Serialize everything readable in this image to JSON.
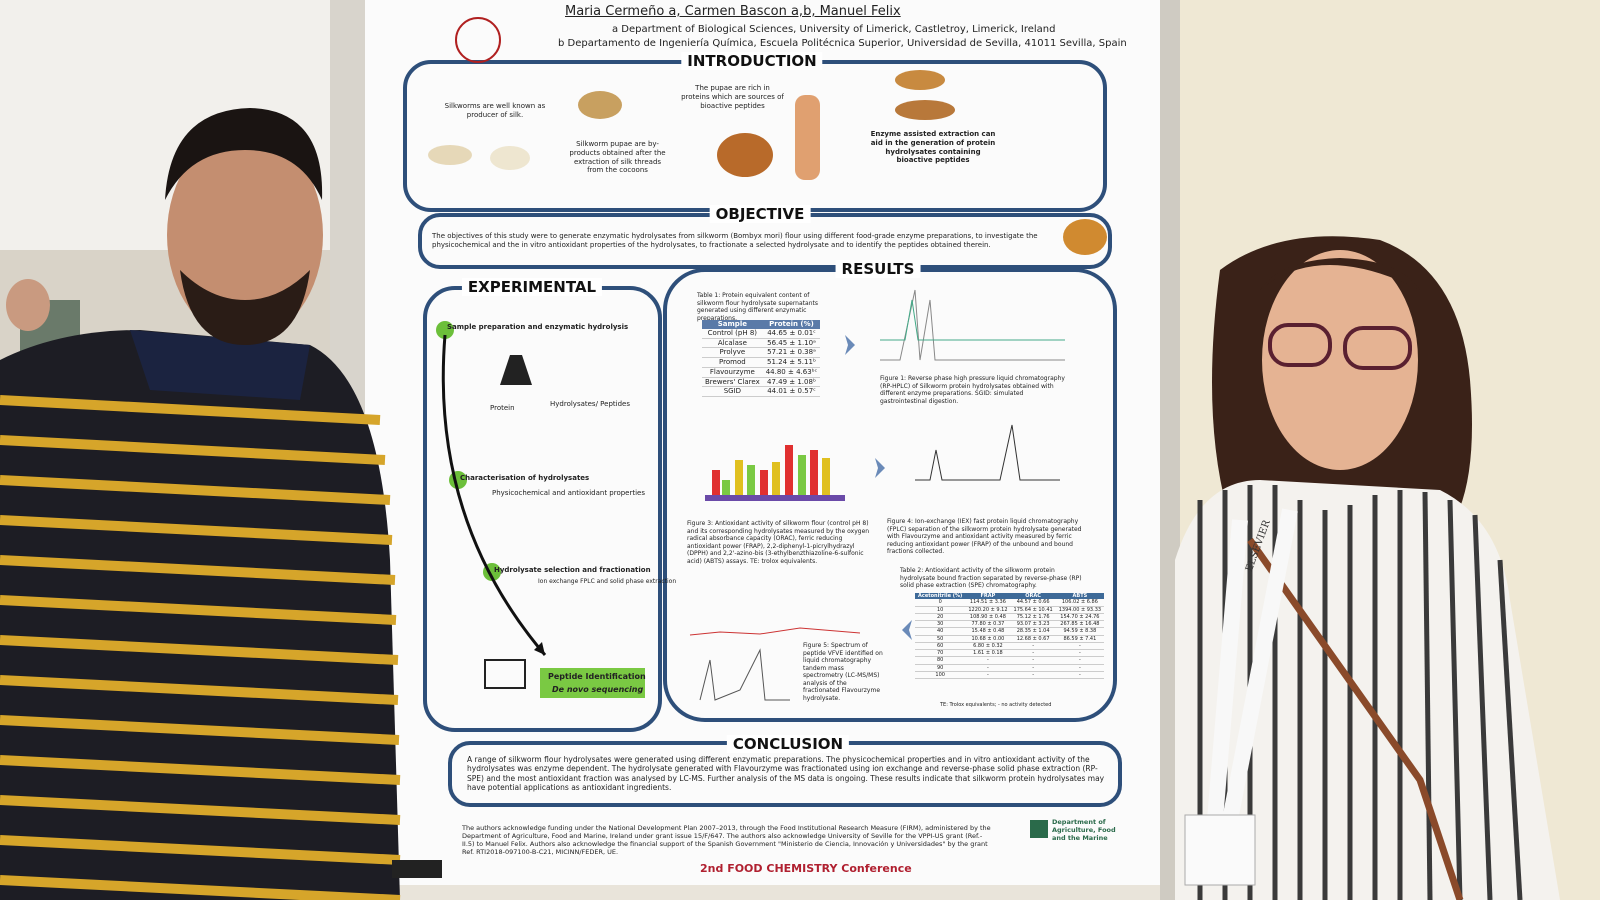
{
  "poster": {
    "authors": "Maria Cermeño a, Carmen Bascon a,b, Manuel Felix",
    "affiliations": [
      "a Department of Biological Sciences, University of Limerick, Castletroy, Limerick, Ireland",
      "b Departamento de Ingeniería Química, Escuela Politécnica Superior, Universidad de Sevilla, 41011 Sevilla, Spain"
    ],
    "introduction": {
      "title": "INTRODUCTION",
      "texts": [
        "Silkworms are well known as producer of silk.",
        "Silkworm pupae are by-products obtained after the extraction of silk threads from the cocoons",
        "The pupae are rich in proteins which are sources of bioactive peptides",
        "Enzyme assisted extraction can aid in the generation of protein hydrolysates containing bioactive peptides"
      ]
    },
    "objective": {
      "title": "OBJECTIVE",
      "text": "The objectives of this study were to generate enzymatic hydrolysates from silkworm (Bombyx mori) flour using different food-grade enzyme preparations, to investigate the physicochemical and the in vitro antioxidant properties of the hydrolysates, to fractionate a selected hydrolysate and to identify the peptides obtained therein."
    },
    "experimental": {
      "title": "EXPERIMENTAL",
      "steps": [
        "Sample preparation and enzymatic hydrolysis",
        "Characterisation of hydrolysates",
        "Hydrolysate selection and fractionation"
      ],
      "labels": [
        "Protein",
        "Hydrolysates/ Peptides",
        "Physicochemical and antioxidant properties",
        "Ion exchange FPLC and solid phase extraction"
      ],
      "final": [
        "Peptide Identification",
        "De novo sequencing"
      ]
    },
    "results": {
      "title": "RESULTS",
      "table1": {
        "caption": "Table 1: Protein equivalent content of silkworm flour hydrolysate supernatants generated using different enzymatic preparations.",
        "header": [
          "Sample",
          "Protein (%)"
        ],
        "rows": [
          [
            "Control (pH 8)",
            "44.65 ± 0.01ᶜ"
          ],
          [
            "Alcalase",
            "56.45 ± 1.10ᵃ"
          ],
          [
            "Prolyve",
            "57.21 ± 0.38ᵃ"
          ],
          [
            "Promod",
            "51.24 ± 5.11ᵇ"
          ],
          [
            "Flavourzyme",
            "44.80 ± 4.63ᵇᶜ"
          ],
          [
            "Brewers' Clarex",
            "47.49 ± 1.08ᵇ"
          ],
          [
            "SGID",
            "44.01 ± 0.57ᶜ"
          ]
        ]
      },
      "figure1": "Figure 1: Reverse phase high pressure liquid chromatography (RP-HPLC) of Silkworm protein hydrolysates obtained with different enzyme preparations. SGID: simulated gastrointestinal digestion.",
      "figure3": "Figure 3: Antioxidant activity of silkworm flour (control pH 8) and its corresponding hydrolysates measured by the oxygen radical absorbance capacity (ORAC), ferric reducing antioxidant power (FRAP), 2,2-diphenyl-1-picrylhydrazyl (DPPH) and 2,2'-azino-bis (3-ethylbenzthiazoline-6-sulfonic acid) (ABTS) assays. TE: trolox equivalents.",
      "figure4": "Figure 4: Ion-exchange (IEX) fast protein liquid chromatography (FPLC) separation of the silkworm protein hydrolysate generated with Flavourzyme and antioxidant activity measured by ferric reducing antioxidant power (FRAP) of the unbound and bound fractions collected.",
      "figure5": "Figure 5: Spectrum of peptide VFVE identified on liquid chromatography tandem mass spectrometry (LC-MS/MS) analysis of the fractionated Flavourzyme hydrolysate.",
      "table2": {
        "caption": "Table 2: Antioxidant activity of the silkworm protein hydrolysate bound fraction separated by reverse-phase (RP) solid phase extraction (SPE) chromatography.",
        "header": [
          "Acetonitrile (%)",
          "FRAP",
          "ORAC",
          "ABTS"
        ],
        "rows": [
          [
            "0",
            "114.51 ± 3.36",
            "44.57 ± 0.66",
            "106.02 ± 6.86"
          ],
          [
            "10",
            "1220.20 ± 9.12",
            "175.64 ± 10.41",
            "1394.00 ± 93.33"
          ],
          [
            "20",
            "108.90 ± 0.48",
            "75.12 ± 1.76",
            "154.70 ± 24.76"
          ],
          [
            "30",
            "77.80 ± 0.37",
            "93.07 ± 3.23",
            "267.85 ± 16.48"
          ],
          [
            "40",
            "15.48 ± 0.48",
            "28.35 ± 1.04",
            "94.59 ± 8.38"
          ],
          [
            "50",
            "10.68 ± 0.00",
            "12.68 ± 0.67",
            "86.59 ± 7.41"
          ],
          [
            "60",
            "6.80 ± 0.32",
            "-",
            "-"
          ],
          [
            "70",
            "1.61 ± 0.18",
            "-",
            "-"
          ],
          [
            "80",
            "-",
            "-",
            "-"
          ],
          [
            "90",
            "-",
            "-",
            "-"
          ],
          [
            "100",
            "-",
            "-",
            "-"
          ]
        ],
        "note": "TE: Trolox equivalents; - no activity detected"
      }
    },
    "conclusion": {
      "title": "CONCLUSION",
      "text": "A range of silkworm flour hydrolysates were generated using different enzymatic preparations. The physicochemical properties and in vitro antioxidant activity of the hydrolysates was enzyme dependent. The hydrolysate generated with Flavourzyme was fractionated using ion exchange and reverse-phase solid phase extraction (RP-SPE) and the most antioxidant fraction was analysed by LC-MS. Further analysis of the MS data is ongoing. These results indicate that silkworm protein hydrolysates may have potential applications as antioxidant ingredients."
    },
    "acknowledgements": "The authors acknowledge funding under the National Development Plan 2007–2013, through the Food Institutional Research Measure (FIRM), administered by the Department of Agriculture, Food and Marine, Ireland under grant issue 15/F/647. The authors also acknowledge University of Seville for the VPPI-US grant (Ref.-II.5) to Manuel Felix. Authors also acknowledge the financial support of the Spanish Government \"Ministerio de Ciencia, Innovación y Universidades\" by the grant Ref. RTI2018-097100-B-C21, MICINN/FEDER, UE.",
    "conference": "2nd FOOD CHEMISTRY Conference",
    "sponsor": "Department of Agriculture, Food and the Marine"
  },
  "lanyard": "ELSEVIER"
}
